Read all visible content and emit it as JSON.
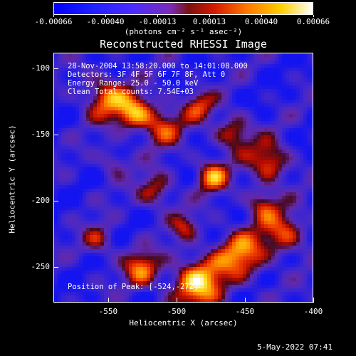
{
  "colorbar": {
    "ticks": [
      "-0.00066",
      "-0.00040",
      "-0.00013",
      "0.00013",
      "0.00040",
      "0.00066"
    ],
    "unit_label": "(photons cm⁻² s⁻¹ asec⁻²)"
  },
  "chart_data": {
    "type": "heatmap",
    "title": "Reconstructed RHESSI Image",
    "xlabel": "Heliocentric X (arcsec)",
    "ylabel": "Heliocentric Y (arcsec)",
    "xlim": [
      -590,
      -400
    ],
    "ylim": [
      -277,
      -88
    ],
    "xticks": [
      "-550",
      "-500",
      "-450",
      "-400"
    ],
    "yticks": [
      "-100",
      "-150",
      "-200",
      "-250"
    ],
    "zlim": [
      -0.00066,
      0.00066
    ],
    "colormap": "blue-purple-red-yellow-white",
    "peak": [
      -524,
      -272
    ],
    "annotations": {
      "time": "28-Nov-2004 13:58:20.000 to 14:01:08.000",
      "detectors": "Detectors: 3F 4F 5F 6F 7F 8F, Att 0",
      "energy": "Energy Range: 25.0 - 50.0 keV",
      "clean": "Clean    Total counts: 7.54E+03",
      "peak_label": "Position of Peak: [-524,-272]"
    }
  },
  "footer": {
    "date": "5-May-2022 07:41"
  }
}
